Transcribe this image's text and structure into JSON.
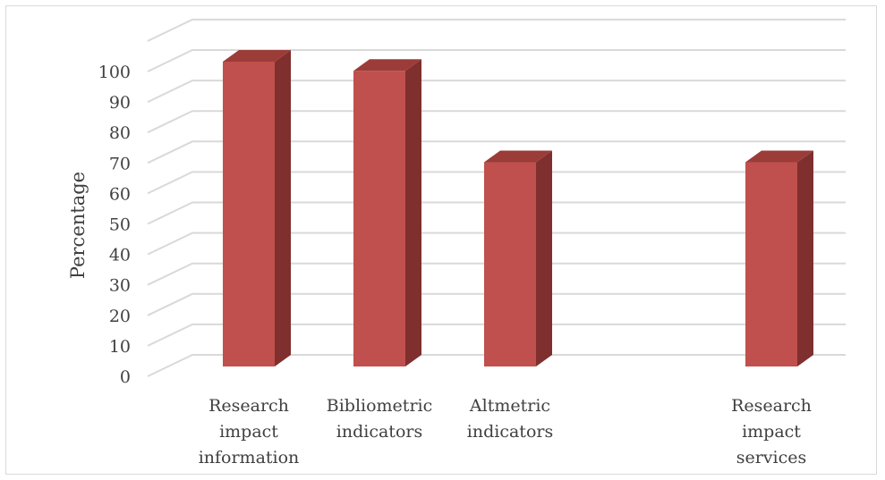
{
  "chart_data": {
    "type": "bar",
    "style": "3d-column",
    "categories": [
      "Research impact information",
      "Bibliometric indicators",
      "Altmetric indicators",
      "",
      "Research impact services"
    ],
    "category_lines": [
      [
        "Research",
        "impact",
        "information"
      ],
      [
        "Bibliometric",
        "indicators"
      ],
      [
        "Altmetric",
        "indicators"
      ],
      [],
      [
        "Research",
        "impact",
        "services"
      ]
    ],
    "values": [
      100,
      97,
      67,
      null,
      67
    ],
    "ylabel": "Percentage",
    "xlabel": "",
    "ylim": [
      0,
      100
    ],
    "yticks": [
      0,
      10,
      20,
      30,
      40,
      50,
      60,
      70,
      80,
      90,
      100
    ],
    "grid": true,
    "legend": "none",
    "colors": {
      "bar_front": "#c0504d",
      "bar_side": "#7f2f2e",
      "bar_top": "#9b3c39",
      "grid": "#d9d9d9",
      "text": "#404040"
    }
  }
}
